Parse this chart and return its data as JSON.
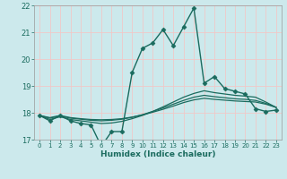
{
  "title": "",
  "xlabel": "Humidex (Indice chaleur)",
  "bg_color": "#cce9ec",
  "grid_color": "#f0c8c8",
  "line_color": "#1a6b5e",
  "xlim": [
    -0.5,
    23.5
  ],
  "ylim": [
    17,
    22
  ],
  "xtick_labels": [
    "0",
    "1",
    "2",
    "3",
    "4",
    "5",
    "6",
    "7",
    "8",
    "9",
    "10",
    "11",
    "12",
    "13",
    "14",
    "15",
    "16",
    "17",
    "18",
    "19",
    "20",
    "21",
    "22",
    "23"
  ],
  "xticks": [
    0,
    1,
    2,
    3,
    4,
    5,
    6,
    7,
    8,
    9,
    10,
    11,
    12,
    13,
    14,
    15,
    16,
    17,
    18,
    19,
    20,
    21,
    22,
    23
  ],
  "yticks": [
    17,
    18,
    19,
    20,
    21,
    22
  ],
  "series": [
    {
      "x": [
        0,
        1,
        2,
        3,
        4,
        5,
        6,
        7,
        8,
        9,
        10,
        11,
        12,
        13,
        14,
        15,
        16,
        17,
        18,
        19,
        20,
        21,
        22,
        23
      ],
      "y": [
        17.9,
        17.7,
        17.9,
        17.7,
        17.6,
        17.55,
        16.75,
        17.3,
        17.3,
        19.5,
        20.4,
        20.6,
        21.1,
        20.5,
        21.2,
        21.9,
        19.1,
        19.35,
        18.9,
        18.8,
        18.7,
        18.15,
        18.05,
        18.1
      ],
      "marker": "D",
      "markersize": 2.5,
      "linewidth": 1.0,
      "dashed": false
    },
    {
      "x": [
        0,
        1,
        2,
        3,
        4,
        5,
        6,
        7,
        8,
        9,
        10,
        11,
        12,
        13,
        14,
        15,
        16,
        17,
        18,
        19,
        20,
        21,
        22,
        23
      ],
      "y": [
        17.9,
        17.75,
        17.85,
        17.75,
        17.7,
        17.65,
        17.6,
        17.62,
        17.68,
        17.78,
        17.9,
        18.05,
        18.22,
        18.4,
        18.58,
        18.72,
        18.82,
        18.75,
        18.7,
        18.65,
        18.62,
        18.58,
        18.4,
        18.2
      ],
      "marker": null,
      "markersize": 0,
      "linewidth": 0.9,
      "dashed": false
    },
    {
      "x": [
        0,
        1,
        2,
        3,
        4,
        5,
        6,
        7,
        8,
        9,
        10,
        11,
        12,
        13,
        14,
        15,
        16,
        17,
        18,
        19,
        20,
        21,
        22,
        23
      ],
      "y": [
        17.9,
        17.8,
        17.88,
        17.8,
        17.76,
        17.72,
        17.7,
        17.72,
        17.76,
        17.83,
        17.93,
        18.05,
        18.18,
        18.32,
        18.46,
        18.58,
        18.65,
        18.6,
        18.56,
        18.52,
        18.5,
        18.46,
        18.35,
        18.2
      ],
      "marker": null,
      "markersize": 0,
      "linewidth": 0.9,
      "dashed": false
    },
    {
      "x": [
        0,
        1,
        2,
        3,
        4,
        5,
        6,
        7,
        8,
        9,
        10,
        11,
        12,
        13,
        14,
        15,
        16,
        17,
        18,
        19,
        20,
        21,
        22,
        23
      ],
      "y": [
        17.9,
        17.82,
        17.9,
        17.82,
        17.78,
        17.75,
        17.74,
        17.75,
        17.78,
        17.84,
        17.92,
        18.02,
        18.13,
        18.25,
        18.38,
        18.48,
        18.54,
        18.5,
        18.47,
        18.44,
        18.42,
        18.4,
        18.32,
        18.2
      ],
      "marker": null,
      "markersize": 0,
      "linewidth": 0.9,
      "dashed": false
    }
  ]
}
